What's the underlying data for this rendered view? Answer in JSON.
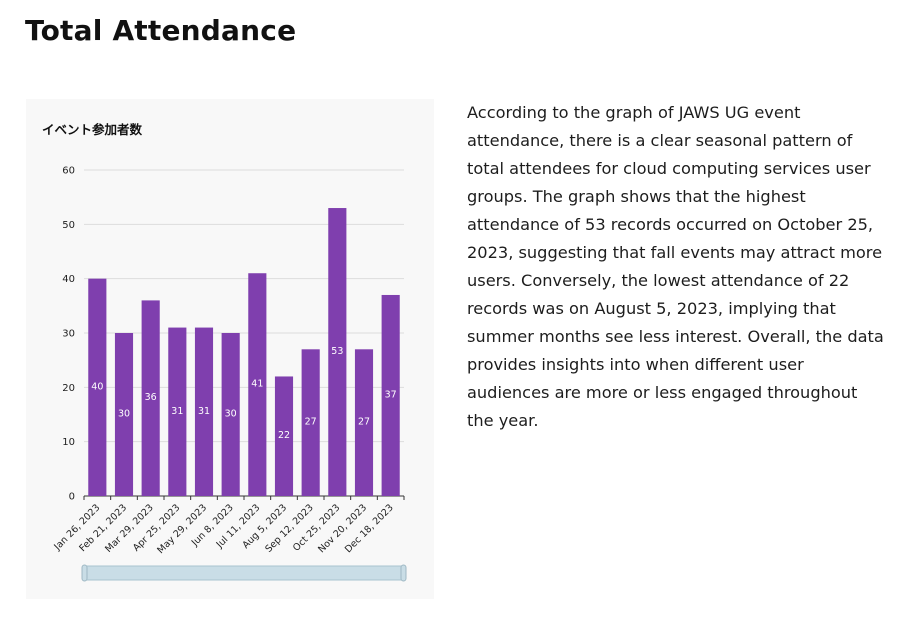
{
  "page": {
    "title": "Total Attendance",
    "description": "According to the graph of JAWS UG event attendance, there is a clear seasonal pattern of total attendees for cloud computing services user groups. The graph shows that the highest attendance of 53 records occurred on October 25, 2023, suggesting that fall events may attract more users. Conversely, the lowest attendance of 22 records was on August 5, 2023, implying that summer months see less interest. Overall, the data provides insights into when different user audiences are more or less engaged throughout the year."
  },
  "chart_data": {
    "type": "bar",
    "title": "イベント参加者数",
    "xlabel": "",
    "ylabel": "",
    "categories": [
      "Jan 26, 2023",
      "Feb 21, 2023",
      "Mar 29, 2023",
      "Apr 25, 2023",
      "May 29, 2023",
      "Jun 8, 2023",
      "Jul 11, 2023",
      "Aug 5, 2023",
      "Sep 12, 2023",
      "Oct 25, 2023",
      "Nov 20, 2023",
      "Dec 18, 2023"
    ],
    "values": [
      40,
      30,
      36,
      31,
      31,
      30,
      41,
      22,
      27,
      53,
      27,
      37
    ],
    "ylim": [
      0,
      60
    ],
    "yticks": [
      0,
      10,
      20,
      30,
      40,
      50,
      60
    ],
    "grid": true,
    "bar_color": "#7f3fae",
    "data_label_color": "#ffffff",
    "scrollbar_color": "#c9dde6"
  }
}
